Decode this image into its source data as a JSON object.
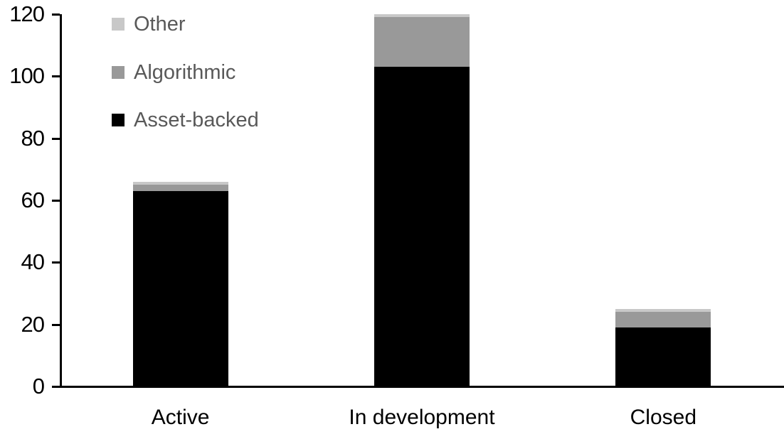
{
  "chart_data": {
    "type": "bar",
    "subtype": "stacked-vertical",
    "title": "",
    "xlabel": "",
    "ylabel": "",
    "categories": [
      "Active",
      "In development",
      "Closed"
    ],
    "series": [
      {
        "name": "Asset-backed",
        "color": "#000000",
        "values": [
          63,
          103,
          19
        ]
      },
      {
        "name": "Algorithmic",
        "color": "#999999",
        "values": [
          2,
          16,
          5
        ]
      },
      {
        "name": "Other",
        "color": "#c8c8c8",
        "values": [
          1,
          1,
          1
        ]
      }
    ],
    "category_totals": [
      66,
      120,
      25
    ],
    "yticks": [
      0,
      20,
      40,
      60,
      80,
      100,
      120
    ],
    "ylim": [
      0,
      120
    ],
    "grid": false,
    "legend": {
      "position": "top-left-inside",
      "order_top_to_bottom": [
        "Other",
        "Algorithmic",
        "Asset-backed"
      ],
      "text_color": "#595959"
    },
    "axis_color": "#000000"
  }
}
